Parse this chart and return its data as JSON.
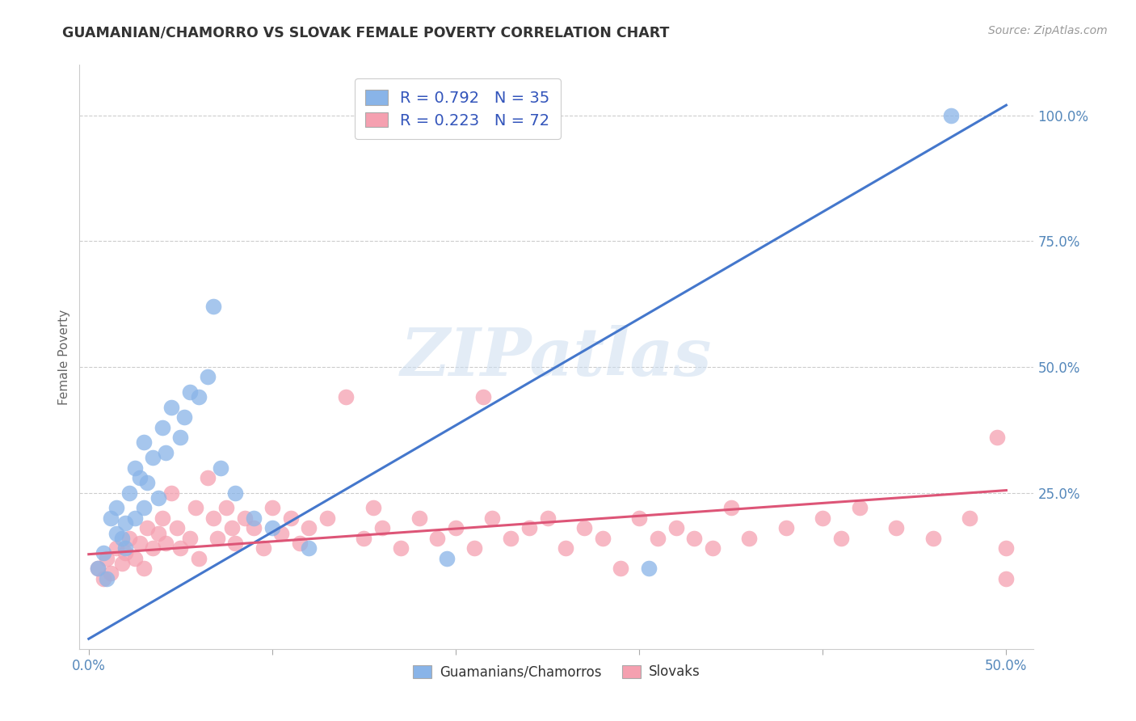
{
  "title": "GUAMANIAN/CHAMORRO VS SLOVAK FEMALE POVERTY CORRELATION CHART",
  "source": "Source: ZipAtlas.com",
  "ylabel": "Female Poverty",
  "xlim_min": -0.005,
  "xlim_max": 0.515,
  "ylim_min": -0.06,
  "ylim_max": 1.1,
  "ytick_vals": [
    0.0,
    0.25,
    0.5,
    0.75,
    1.0
  ],
  "ytick_labels": [
    "",
    "25.0%",
    "50.0%",
    "75.0%",
    "100.0%"
  ],
  "xtick_vals": [
    0.0,
    0.1,
    0.2,
    0.3,
    0.4,
    0.5
  ],
  "xtick_labels": [
    "0.0%",
    "",
    "",
    "",
    "",
    "50.0%"
  ],
  "blue_R": 0.792,
  "blue_N": 35,
  "pink_R": 0.223,
  "pink_N": 72,
  "blue_color": "#89b4e8",
  "pink_color": "#f5a0b0",
  "blue_line_color": "#4477cc",
  "pink_line_color": "#dd5577",
  "blue_line_x0": 0.0,
  "blue_line_y0": -0.04,
  "blue_line_x1": 0.5,
  "blue_line_y1": 1.02,
  "pink_line_x0": 0.0,
  "pink_line_y0": 0.128,
  "pink_line_x1": 0.5,
  "pink_line_y1": 0.255,
  "watermark": "ZIPatlas",
  "legend_label_blue": "Guamanians/Chamorros",
  "legend_label_pink": "Slovaks",
  "blue_scatter_x": [
    0.005,
    0.008,
    0.01,
    0.012,
    0.015,
    0.015,
    0.018,
    0.02,
    0.02,
    0.022,
    0.025,
    0.025,
    0.028,
    0.03,
    0.03,
    0.032,
    0.035,
    0.038,
    0.04,
    0.042,
    0.045,
    0.05,
    0.052,
    0.055,
    0.06,
    0.065,
    0.068,
    0.072,
    0.08,
    0.09,
    0.1,
    0.12,
    0.195,
    0.305,
    0.47
  ],
  "blue_scatter_y": [
    0.1,
    0.13,
    0.08,
    0.2,
    0.17,
    0.22,
    0.16,
    0.14,
    0.19,
    0.25,
    0.2,
    0.3,
    0.28,
    0.22,
    0.35,
    0.27,
    0.32,
    0.24,
    0.38,
    0.33,
    0.42,
    0.36,
    0.4,
    0.45,
    0.44,
    0.48,
    0.62,
    0.3,
    0.25,
    0.2,
    0.18,
    0.14,
    0.12,
    0.1,
    1.0
  ],
  "pink_scatter_x": [
    0.005,
    0.008,
    0.01,
    0.012,
    0.015,
    0.018,
    0.02,
    0.022,
    0.025,
    0.028,
    0.03,
    0.032,
    0.035,
    0.038,
    0.04,
    0.042,
    0.045,
    0.048,
    0.05,
    0.055,
    0.058,
    0.06,
    0.065,
    0.068,
    0.07,
    0.075,
    0.078,
    0.08,
    0.085,
    0.09,
    0.095,
    0.1,
    0.105,
    0.11,
    0.115,
    0.12,
    0.13,
    0.14,
    0.15,
    0.155,
    0.16,
    0.17,
    0.18,
    0.19,
    0.2,
    0.21,
    0.215,
    0.22,
    0.23,
    0.24,
    0.25,
    0.26,
    0.27,
    0.28,
    0.29,
    0.3,
    0.31,
    0.32,
    0.33,
    0.34,
    0.35,
    0.36,
    0.38,
    0.4,
    0.41,
    0.42,
    0.44,
    0.46,
    0.48,
    0.495,
    0.5,
    0.5
  ],
  "pink_scatter_y": [
    0.1,
    0.08,
    0.12,
    0.09,
    0.14,
    0.11,
    0.13,
    0.16,
    0.12,
    0.15,
    0.1,
    0.18,
    0.14,
    0.17,
    0.2,
    0.15,
    0.25,
    0.18,
    0.14,
    0.16,
    0.22,
    0.12,
    0.28,
    0.2,
    0.16,
    0.22,
    0.18,
    0.15,
    0.2,
    0.18,
    0.14,
    0.22,
    0.17,
    0.2,
    0.15,
    0.18,
    0.2,
    0.44,
    0.16,
    0.22,
    0.18,
    0.14,
    0.2,
    0.16,
    0.18,
    0.14,
    0.44,
    0.2,
    0.16,
    0.18,
    0.2,
    0.14,
    0.18,
    0.16,
    0.1,
    0.2,
    0.16,
    0.18,
    0.16,
    0.14,
    0.22,
    0.16,
    0.18,
    0.2,
    0.16,
    0.22,
    0.18,
    0.16,
    0.2,
    0.36,
    0.08,
    0.14
  ]
}
